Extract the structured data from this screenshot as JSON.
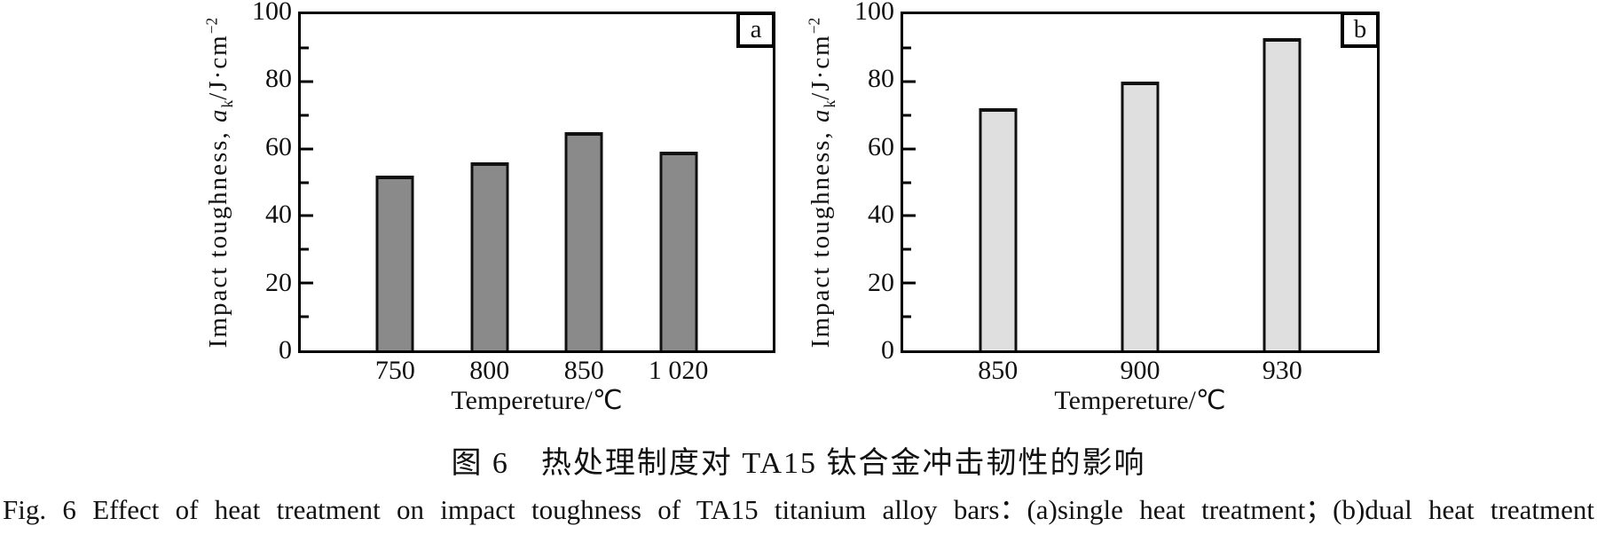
{
  "figure": {
    "caption_zh": "图 6　热处理制度对 TA15 钛合金冲击韧性的影响",
    "caption_en": "Fig. 6  Effect of heat treatment on impact toughness of TA15 titanium alloy bars：(a)single heat treatment；(b)dual heat treatment"
  },
  "chart_data": [
    {
      "type": "bar",
      "panel": "a",
      "title": "",
      "xlabel": "Tempereture/℃",
      "ylabel": "Impact toughness, aₖ/J·cm⁻²",
      "ylabel_parts": {
        "prefix": "Impact toughness, ",
        "symbol": "a",
        "subscript": "k",
        "unit": "/J·cm",
        "exponent": "−2"
      },
      "categories": [
        "750",
        "800",
        "850",
        "1 020"
      ],
      "values": [
        52,
        56,
        65,
        59
      ],
      "ylim": [
        0,
        100
      ],
      "yticks": [
        0,
        20,
        40,
        60,
        80,
        100
      ],
      "yticks_minor": [
        10,
        30,
        50,
        70,
        90
      ],
      "grid": false,
      "legend": "none",
      "bar_color": "#8a8a8a",
      "bar_border_color": "#111111",
      "bar_centers_pct": [
        20,
        40,
        60,
        80
      ]
    },
    {
      "type": "bar",
      "panel": "b",
      "title": "",
      "xlabel": "Tempereture/℃",
      "ylabel": "Impact toughness, aₖ/J·cm⁻²",
      "ylabel_parts": {
        "prefix": "Impact toughness, ",
        "symbol": "a",
        "subscript": "k",
        "unit": "/J·cm",
        "exponent": "−2"
      },
      "categories": [
        "850",
        "900",
        "930"
      ],
      "values": [
        72,
        80,
        93
      ],
      "ylim": [
        0,
        100
      ],
      "yticks": [
        0,
        20,
        40,
        60,
        80,
        100
      ],
      "yticks_minor": [
        10,
        30,
        50,
        70,
        90
      ],
      "grid": false,
      "legend": "none",
      "bar_color": "#dfdfdf",
      "bar_border_color": "#111111",
      "bar_centers_pct": [
        20,
        50,
        80
      ]
    }
  ]
}
